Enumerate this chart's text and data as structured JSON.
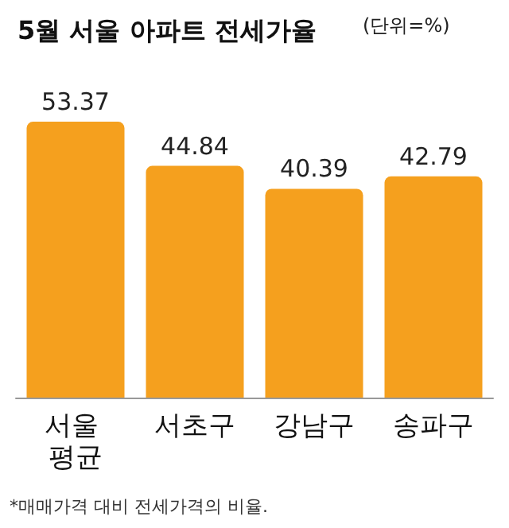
{
  "chart_data": {
    "type": "bar",
    "title": "5월 서울 아파트 전세가율",
    "subtitle": "(단위=%)",
    "categories": [
      "서울 평균",
      "서초구",
      "강남구",
      "송파구"
    ],
    "values": [
      53.37,
      44.84,
      40.39,
      42.79
    ],
    "color": "#f5a01e",
    "data_labels": true,
    "annotations": [
      "*매매가격 대비 전세가격의 비율."
    ]
  }
}
